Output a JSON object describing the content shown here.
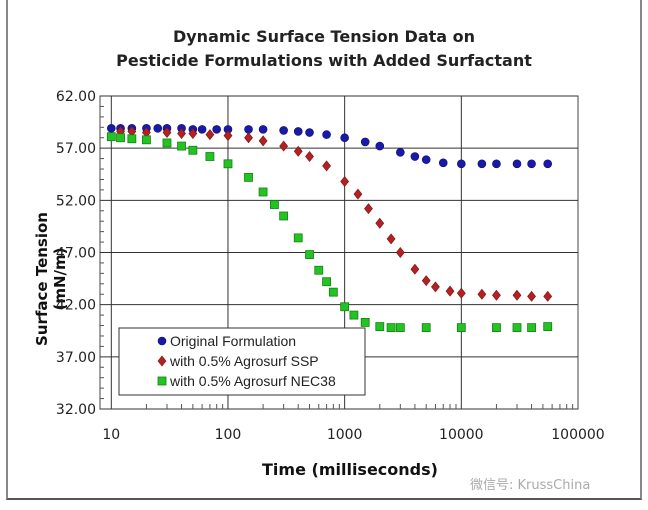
{
  "chart_data": {
    "type": "scatter",
    "title": "Dynamic Surface Tension Data on",
    "title_line2": "Pesticide Formulations with Added Surfactant",
    "xlabel": "Time (milliseconds)",
    "ylabel": "Surface Tension",
    "ylabel_line2": "(mN/m)",
    "xscale": "log",
    "xlim": [
      8,
      100000
    ],
    "ylim": [
      32,
      62
    ],
    "xticks": [
      10,
      100,
      1000,
      10000,
      100000
    ],
    "xtick_labels": [
      "10",
      "100",
      "1000",
      "10000",
      "100000"
    ],
    "yticks": [
      32,
      37,
      42,
      47,
      52,
      57,
      62
    ],
    "ytick_labels": [
      "32.00",
      "37.00",
      "42.00",
      "47.00",
      "52.00",
      "57.00",
      "62.00"
    ],
    "grid": true,
    "legend_position": "bottom-left",
    "series": [
      {
        "name": "Original Formulation",
        "color": "#1a1aa8",
        "marker": "circle",
        "x": [
          10,
          12,
          15,
          20,
          25,
          30,
          40,
          50,
          60,
          80,
          100,
          150,
          200,
          300,
          400,
          500,
          700,
          1000,
          1500,
          2000,
          3000,
          4000,
          5000,
          7000,
          10000,
          15000,
          20000,
          30000,
          40000,
          55000
        ],
        "y": [
          58.9,
          58.9,
          58.9,
          58.9,
          58.9,
          58.9,
          58.9,
          58.8,
          58.8,
          58.8,
          58.8,
          58.8,
          58.8,
          58.7,
          58.6,
          58.5,
          58.3,
          58.0,
          57.6,
          57.2,
          56.6,
          56.2,
          55.9,
          55.6,
          55.5,
          55.5,
          55.5,
          55.5,
          55.5,
          55.5
        ]
      },
      {
        "name": "with 0.5% Agrosurf SSP",
        "color": "#b22222",
        "marker": "diamond",
        "x": [
          12,
          15,
          20,
          30,
          40,
          50,
          70,
          100,
          150,
          200,
          300,
          400,
          500,
          700,
          1000,
          1300,
          1600,
          2000,
          2500,
          3000,
          4000,
          5000,
          6000,
          8000,
          10000,
          15000,
          20000,
          30000,
          40000,
          55000
        ],
        "y": [
          58.6,
          58.6,
          58.5,
          58.5,
          58.4,
          58.4,
          58.3,
          58.2,
          58.0,
          57.7,
          57.2,
          56.7,
          56.2,
          55.3,
          53.8,
          52.6,
          51.2,
          49.8,
          48.3,
          47.0,
          45.4,
          44.3,
          43.7,
          43.3,
          43.1,
          43.0,
          42.9,
          42.9,
          42.8,
          42.8
        ]
      },
      {
        "name": "with 0.5% Agrosurf NEC38",
        "color": "#22c422",
        "marker": "square",
        "x": [
          10,
          12,
          15,
          20,
          30,
          40,
          50,
          70,
          100,
          150,
          200,
          250,
          300,
          400,
          500,
          600,
          700,
          800,
          1000,
          1200,
          1500,
          2000,
          2500,
          3000,
          5000,
          10000,
          20000,
          30000,
          40000,
          55000
        ],
        "y": [
          58.1,
          58.0,
          57.9,
          57.8,
          57.5,
          57.2,
          56.8,
          56.2,
          55.5,
          54.2,
          52.8,
          51.6,
          50.5,
          48.4,
          46.8,
          45.3,
          44.2,
          43.2,
          41.8,
          41.0,
          40.3,
          39.9,
          39.8,
          39.8,
          39.8,
          39.8,
          39.8,
          39.8,
          39.8,
          39.9
        ]
      }
    ]
  },
  "watermark": "微信号: KrussChina"
}
